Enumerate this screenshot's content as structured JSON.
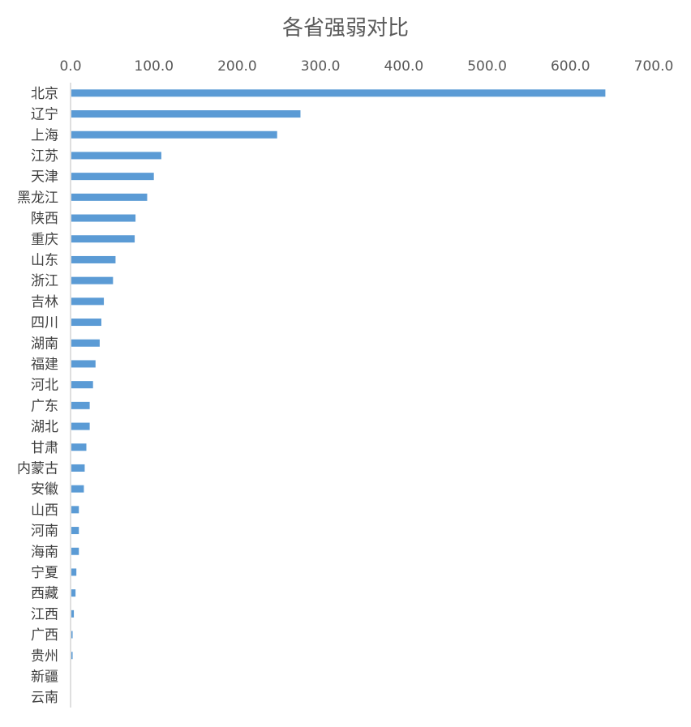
{
  "chart_data": {
    "type": "bar",
    "orientation": "horizontal",
    "title": "各省强弱对比",
    "x_axis_position": "top",
    "xlim": [
      0,
      700
    ],
    "xticks": [
      "0.0",
      "100.0",
      "200.0",
      "300.0",
      "400.0",
      "500.0",
      "600.0",
      "700.0"
    ],
    "grid": false,
    "bar_color": "#5b9bd5",
    "categories": [
      "北京",
      "辽宁",
      "上海",
      "江苏",
      "天津",
      "黑龙江",
      "陕西",
      "重庆",
      "山东",
      "浙江",
      "吉林",
      "四川",
      "湖南",
      "福建",
      "河北",
      "广东",
      "湖北",
      "甘肃",
      "内蒙古",
      "安徽",
      "山西",
      "河南",
      "海南",
      "宁夏",
      "西藏",
      "江西",
      "广西",
      "贵州",
      "新疆",
      "云南"
    ],
    "values": [
      641,
      275,
      247,
      108,
      99,
      91,
      77,
      76,
      53,
      50,
      39,
      36,
      34,
      29,
      26,
      22,
      22,
      18,
      16,
      15,
      9,
      9,
      9,
      6,
      5,
      3,
      1.5,
      1.5,
      0,
      0
    ]
  }
}
